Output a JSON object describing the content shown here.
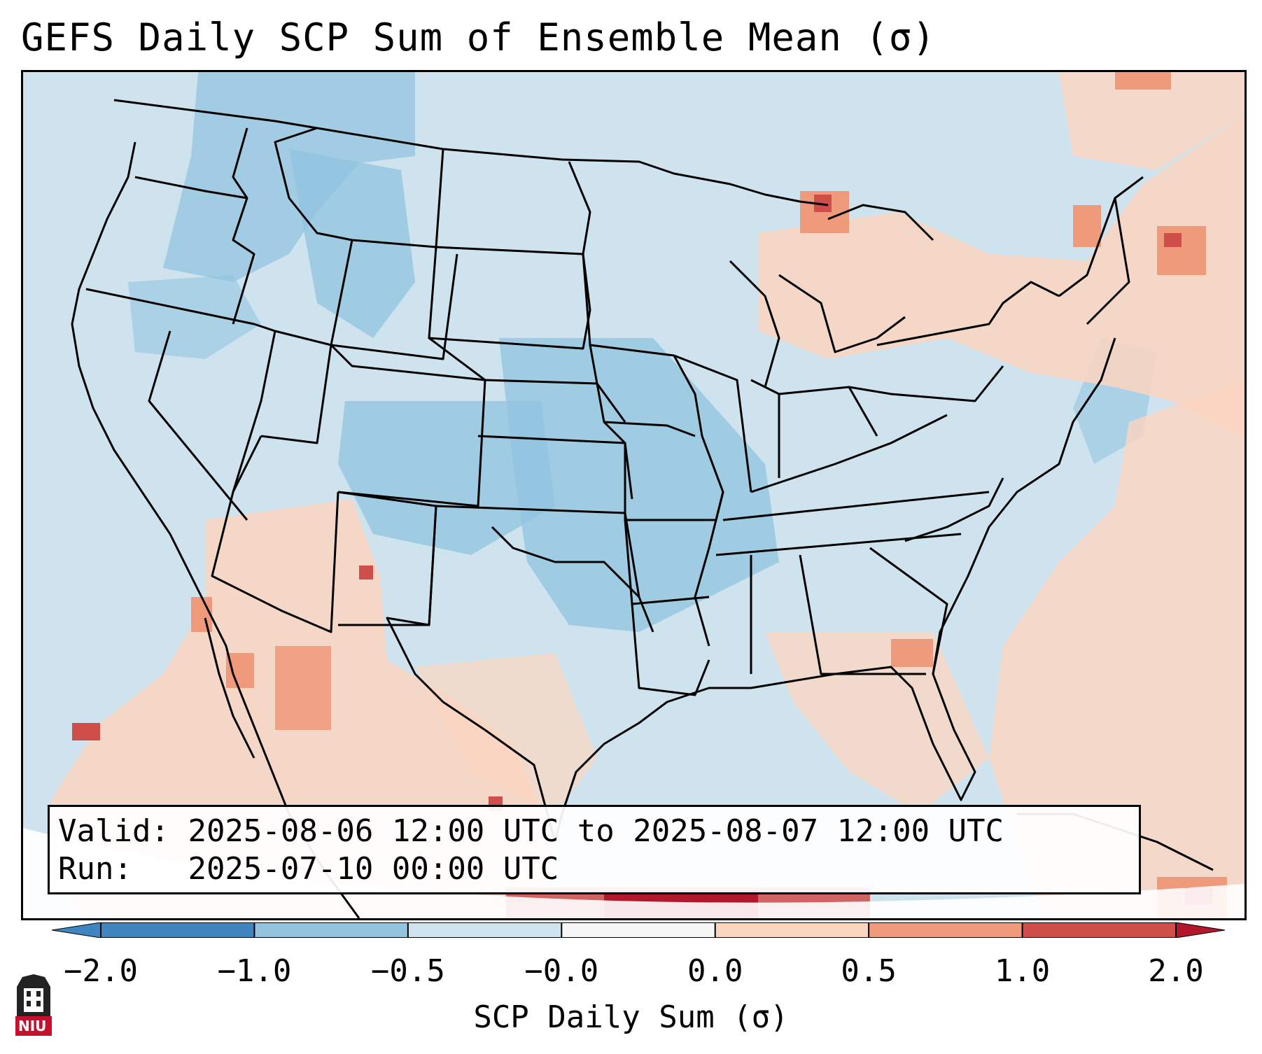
{
  "title": "GEFS Daily SCP Sum of Ensemble Mean (σ)",
  "info": {
    "valid_label": "Valid:",
    "valid_value": "2025-08-06 12:00 UTC to 2025-08-07 12:00 UTC",
    "run_label": "Run:",
    "run_value": "2025-07-10 00:00 UTC"
  },
  "colorbar": {
    "label": "SCP Daily Sum (σ)",
    "ticks": [
      "−2.0",
      "−1.0",
      "−0.5",
      "−0.0",
      "0.0",
      "0.5",
      "1.0",
      "2.0"
    ],
    "colors": [
      "#3f85c0",
      "#92c4e0",
      "#d0e4f0",
      "#f7f7f7",
      "#fcd5c0",
      "#f09a7c",
      "#cf4e4a",
      "#b2182b"
    ],
    "extend": "both"
  },
  "map": {
    "region": "Contiguous United States",
    "background_color": "#cfe3ef",
    "features": [
      "state-borders",
      "coastlines",
      "country-borders"
    ]
  },
  "logo": {
    "text": "NIU",
    "color": "#c8102e"
  }
}
